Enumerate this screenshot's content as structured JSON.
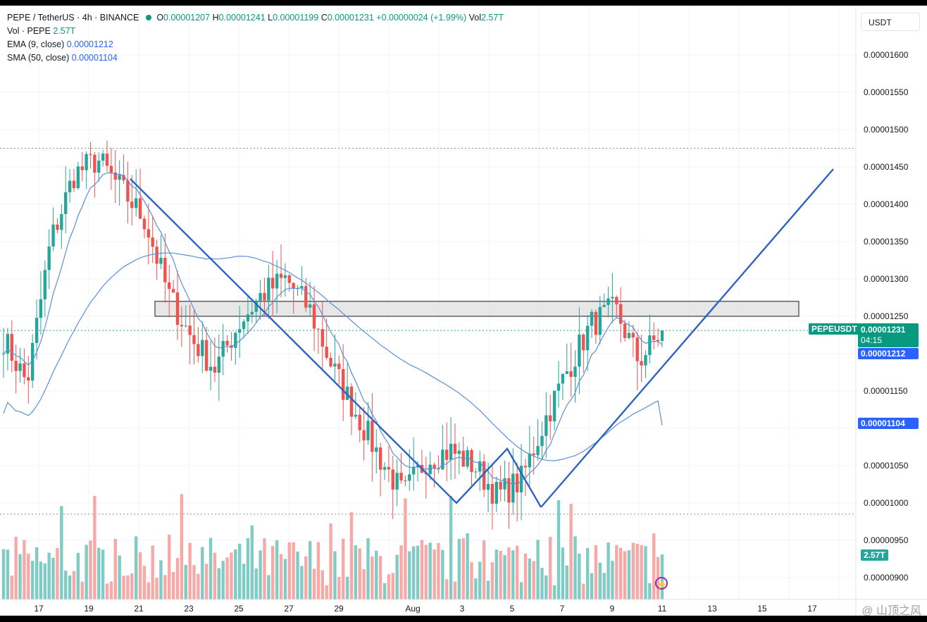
{
  "header": {
    "symbol": "PEPE / TetherUS · 4h · BINANCE",
    "o_label": "O",
    "o_value": "0.00001207",
    "h_label": "H",
    "h_value": "0.00001241",
    "l_label": "L",
    "l_value": "0.00001199",
    "c_label": "C",
    "c_value": "0.00001231",
    "change": "+0.00000024 (+1.99%)",
    "vol_label": "Vol",
    "vol_value": "2.57T",
    "vol_row_label": "Vol · PEPE",
    "vol_row_value": "2.57T",
    "ema_label": "EMA (9, close)",
    "ema_value": "0.00001212",
    "sma_label": "SMA (50, close)",
    "sma_value": "0.00001104"
  },
  "currency": "USDT",
  "price_tags": {
    "symbol_tag": "PEPEUSDT",
    "last_price": "0.00001231",
    "countdown": "04:15",
    "ema_price": "0.00001212",
    "sma_price": "0.00001104",
    "volume": "2.57T"
  },
  "colors": {
    "up": "#26a69a",
    "down": "#ef5350",
    "ma": "#5b8fd6",
    "trend": "#2e63c2",
    "ema_tag": "#2962ff"
  },
  "watermark": "@ 山顶之风",
  "chart_data": {
    "type": "candlestick",
    "ylim": [
      8.8e-06,
      1.65e-05
    ],
    "y_ticks": [
      "0.00001600",
      "0.00001550",
      "0.00001500",
      "0.00001450",
      "0.00001400",
      "0.00001350",
      "0.00001300",
      "0.00001250",
      "0.00001150",
      "0.00001050",
      "0.00001000",
      "0.00000950",
      "0.00000900"
    ],
    "x_ticks": [
      "17",
      "19",
      "21",
      "23",
      "25",
      "27",
      "29",
      "Aug",
      "3",
      "5",
      "7",
      "9",
      "11",
      "13",
      "15",
      "17"
    ],
    "key_prices": [
      1.22e-05,
      1.16e-05,
      1.35e-05,
      1.44e-05,
      1.46e-05,
      1.42e-05,
      1.38e-05,
      1.28e-05,
      1.22e-05,
      1.18e-05,
      1.24e-05,
      1.28e-05,
      1.3e-05,
      1.26e-05,
      1.18e-05,
      1.12e-05,
      1.06e-05,
      1.01e-05,
      1.06e-05,
      1.07e-05,
      1.05e-05,
      1.01e-05,
      1.03e-05,
      1.11e-05,
      1.18e-05,
      1.24e-05,
      1.26e-05,
      1.19e-05,
      1.23e-05
    ],
    "ema_last": 1.212e-05,
    "sma_last": 1.104e-05,
    "last_close": 1.231e-05,
    "resistance_zone": [
      1.25e-05,
      1.27e-05
    ],
    "dashed_levels": [
      1.475e-05,
      9.85e-06
    ]
  }
}
